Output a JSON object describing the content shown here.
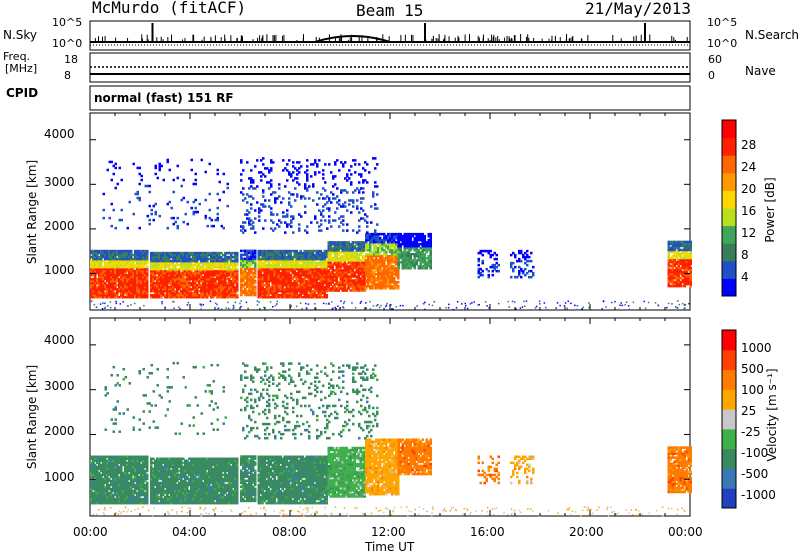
{
  "header": {
    "station": "McMurdo (fitACF)",
    "beam": "Beam 15",
    "date": "21/May/2013"
  },
  "noise_panel": {
    "left_label": "N.Sky",
    "right_label": "N.Search",
    "left_ticks": [
      "10^5",
      "10^0"
    ],
    "right_ticks": [
      "10^5",
      "10^0"
    ]
  },
  "freq_panel": {
    "left_label_1": "Freq.",
    "left_label_2": "[MHz]",
    "right_label": "Nave",
    "left_ticks": [
      "18",
      "8"
    ],
    "right_ticks": [
      "60",
      "0"
    ]
  },
  "cpid": {
    "label": "CPID",
    "value": "normal (fast) 151 RF"
  },
  "chart_data": [
    {
      "type": "heatmap",
      "name": "power",
      "ylabel": "Slant Range [km]",
      "yticks": [
        "1000",
        "2000",
        "3000",
        "4000"
      ],
      "ylim": [
        180,
        4600
      ],
      "colorbar_label": "Power [dB]",
      "colorbar_ticks": [
        "4",
        "8",
        "12",
        "16",
        "20",
        "24",
        "28"
      ],
      "colors": [
        "#0000ff",
        "#2050c8",
        "#3a7d5a",
        "#3fa65a",
        "#b8e020",
        "#ffd700",
        "#ff9900",
        "#ff6600",
        "#ff2000",
        "#ff0000"
      ],
      "xlim_hours": [
        0,
        24
      ]
    },
    {
      "type": "heatmap",
      "name": "velocity",
      "ylabel": "Slant Range [km]",
      "yticks": [
        "1000",
        "2000",
        "3000",
        "4000"
      ],
      "ylim": [
        180,
        4600
      ],
      "colorbar_label": "Velocity [m s⁻¹]",
      "colorbar_ticks": [
        "1000",
        "500",
        "100",
        "25",
        "-25",
        "-100",
        "-500",
        "-1000"
      ],
      "colors": [
        "#2040c0",
        "#3a78b8",
        "#3a8a60",
        "#3fb04a",
        "#c8c8c8",
        "#ffa500",
        "#ff7a00",
        "#ff4000",
        "#ff0000"
      ],
      "xlim_hours": [
        0,
        24
      ]
    }
  ],
  "x_axis": {
    "ticks": [
      "00:00",
      "04:00",
      "08:00",
      "12:00",
      "16:00",
      "20:00",
      "00:00"
    ],
    "label": "Time UT"
  }
}
